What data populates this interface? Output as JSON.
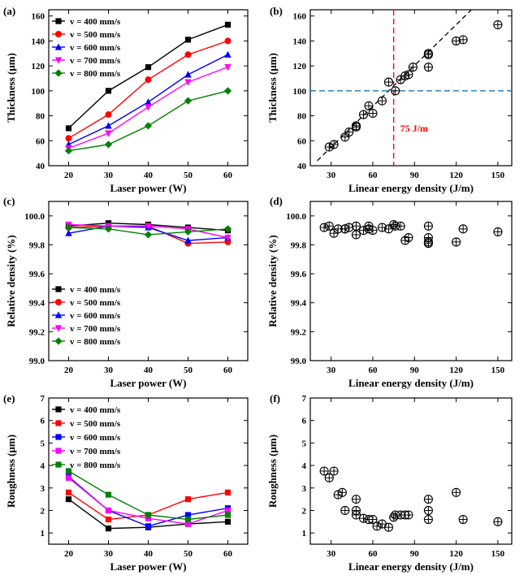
{
  "colors": {
    "s400": "#000000",
    "s500": "#ff0000",
    "s600": "#0000ff",
    "s700": "#ff00ff",
    "s800": "#008000",
    "fit_line": "#000000",
    "vline": "#ff0000",
    "hline": "#1f77b4"
  },
  "chart_data": [
    {
      "panel": "(a)",
      "type": "line",
      "xlabel": "Laser power (W)",
      "ylabel": "Thickness (μm)",
      "xlim": [
        15,
        65
      ],
      "ylim": [
        40,
        165
      ],
      "xticks": [
        20,
        30,
        40,
        50,
        60
      ],
      "yticks": [
        40,
        60,
        80,
        100,
        120,
        140,
        160
      ],
      "legend_position": "top-left",
      "x": [
        20,
        30,
        40,
        50,
        60
      ],
      "series": [
        {
          "name": "v = 400 mm/s",
          "marker": "square",
          "values": [
            70,
            100,
            119,
            141,
            153
          ]
        },
        {
          "name": "v = 500 mm/s",
          "marker": "circle",
          "values": [
            62,
            81,
            109,
            129,
            140
          ]
        },
        {
          "name": "v = 600 mm/s",
          "marker": "triangle-up",
          "values": [
            57,
            72,
            91,
            113,
            129
          ]
        },
        {
          "name": "v = 700 mm/s",
          "marker": "triangle-down",
          "values": [
            54,
            66,
            87,
            107,
            119
          ]
        },
        {
          "name": "v = 800 mm/s",
          "marker": "diamond",
          "values": [
            52,
            57,
            72,
            92,
            100
          ]
        }
      ]
    },
    {
      "panel": "(b)",
      "type": "scatter",
      "xlabel": "Linear energy density  (J/m)",
      "ylabel": "Thickness (μm)",
      "xlim": [
        15,
        160
      ],
      "ylim": [
        40,
        165
      ],
      "xticks": [
        30,
        60,
        90,
        120,
        150
      ],
      "yticks": [
        40,
        60,
        80,
        100,
        120,
        140,
        160
      ],
      "marker": "circle-plus",
      "x": [
        28.6,
        32,
        40,
        42.9,
        48,
        48,
        53.3,
        57.1,
        60,
        66.7,
        71.4,
        76.2,
        80,
        83.3,
        85.7,
        88.9,
        100,
        100,
        100,
        120,
        125,
        150
      ],
      "y": [
        55,
        57,
        63,
        67,
        71,
        72,
        81,
        88,
        82,
        92,
        107,
        100,
        109,
        112,
        113,
        119,
        119,
        129,
        130,
        140,
        141,
        153
      ],
      "fit_line": {
        "x": [
          20,
          131
        ],
        "y": [
          44,
          165
        ]
      },
      "vline_x": 75,
      "hline_y": 100,
      "annotation": "75 J/m"
    },
    {
      "panel": "(c)",
      "type": "line",
      "xlabel": "Laser power (W)",
      "ylabel": "Relative density (%)",
      "xlim": [
        15,
        65
      ],
      "ylim": [
        99.0,
        100.1
      ],
      "xticks": [
        20,
        30,
        40,
        50,
        60
      ],
      "yticks": [
        99.0,
        99.2,
        99.4,
        99.6,
        99.8,
        100.0
      ],
      "legend_position": "bottom-left",
      "x": [
        20,
        30,
        40,
        50,
        60
      ],
      "series": [
        {
          "name": "v = 400 mm/s",
          "marker": "square",
          "values": [
            99.93,
            99.95,
            99.94,
            99.92,
            99.9
          ]
        },
        {
          "name": "v = 500 mm/s",
          "marker": "circle",
          "values": [
            99.92,
            99.93,
            99.93,
            99.81,
            99.82
          ]
        },
        {
          "name": "v = 600 mm/s",
          "marker": "triangle-up",
          "values": [
            99.88,
            99.93,
            99.92,
            99.83,
            99.85
          ]
        },
        {
          "name": "v = 700 mm/s",
          "marker": "triangle-down",
          "values": [
            99.94,
            99.93,
            99.93,
            99.91,
            99.85
          ]
        },
        {
          "name": "v = 800 mm/s",
          "marker": "diamond",
          "values": [
            99.92,
            99.91,
            99.87,
            99.89,
            99.91
          ]
        }
      ]
    },
    {
      "panel": "(d)",
      "type": "scatter",
      "xlabel": "Linear energy density (J/m)",
      "ylabel": "Relative density (%)",
      "xlim": [
        15,
        160
      ],
      "ylim": [
        99.0,
        100.1
      ],
      "xticks": [
        30,
        60,
        90,
        120,
        150
      ],
      "yticks": [
        99.0,
        99.2,
        99.4,
        99.6,
        99.8,
        100.0
      ],
      "marker": "circle-plus",
      "x": [
        25,
        28.6,
        32,
        35,
        40,
        40,
        42.9,
        48,
        48,
        53.3,
        57.1,
        57.1,
        60,
        66.7,
        71.4,
        75,
        76.2,
        80,
        83.3,
        85.7,
        100,
        100,
        100,
        100,
        120,
        125,
        150
      ],
      "y": [
        99.92,
        99.93,
        99.88,
        99.91,
        99.91,
        99.91,
        99.92,
        99.93,
        99.87,
        99.9,
        99.91,
        99.93,
        99.9,
        99.92,
        99.91,
        99.94,
        99.93,
        99.93,
        99.83,
        99.85,
        99.93,
        99.85,
        99.81,
        99.82,
        99.82,
        99.91,
        99.89
      ]
    },
    {
      "panel": "(e)",
      "type": "line",
      "xlabel": "Laser power (W)",
      "ylabel": "Roughness (μm)",
      "xlim": [
        15,
        65
      ],
      "ylim": [
        0.5,
        7.0
      ],
      "xticks": [
        20,
        30,
        40,
        50,
        60
      ],
      "yticks": [
        1,
        2,
        3,
        4,
        5,
        6,
        7
      ],
      "legend_position": "top-left",
      "x": [
        20,
        30,
        40,
        50,
        60
      ],
      "series": [
        {
          "name": "v = 400 mm/s",
          "marker": "square",
          "values": [
            2.5,
            1.2,
            1.25,
            1.4,
            1.5
          ]
        },
        {
          "name": "v = 500 mm/s",
          "marker": "square",
          "values": [
            2.8,
            1.6,
            1.8,
            2.5,
            2.8
          ]
        },
        {
          "name": "v = 600 mm/s",
          "marker": "square",
          "values": [
            3.5,
            2.0,
            1.3,
            1.8,
            2.1
          ]
        },
        {
          "name": "v = 700 mm/s",
          "marker": "square",
          "values": [
            3.45,
            2.0,
            1.65,
            1.4,
            2.0
          ]
        },
        {
          "name": "v = 800 mm/s",
          "marker": "square",
          "values": [
            3.75,
            2.7,
            1.8,
            1.6,
            1.8
          ]
        }
      ]
    },
    {
      "panel": "(f)",
      "type": "scatter",
      "xlabel": "Linear energy density (J/m)",
      "ylabel": "Roughness (μm)",
      "xlim": [
        15,
        160
      ],
      "ylim": [
        0.5,
        7.0
      ],
      "xticks": [
        30,
        60,
        90,
        120,
        150
      ],
      "yticks": [
        1,
        2,
        3,
        4,
        5,
        6,
        7
      ],
      "marker": "circle-plus",
      "x": [
        25,
        28.6,
        32,
        35,
        38,
        40,
        48,
        48,
        48,
        53.3,
        57.1,
        60,
        63,
        66.7,
        71.4,
        75,
        76.2,
        80,
        83.3,
        85.7,
        100,
        100,
        100,
        120,
        125,
        150
      ],
      "y": [
        3.75,
        3.45,
        3.75,
        2.7,
        2.8,
        2.0,
        2.5,
        2.0,
        1.8,
        1.65,
        1.6,
        1.6,
        1.3,
        1.4,
        1.25,
        1.7,
        1.8,
        1.8,
        1.8,
        1.8,
        2.5,
        2.0,
        1.6,
        2.8,
        1.6,
        1.5
      ]
    }
  ]
}
